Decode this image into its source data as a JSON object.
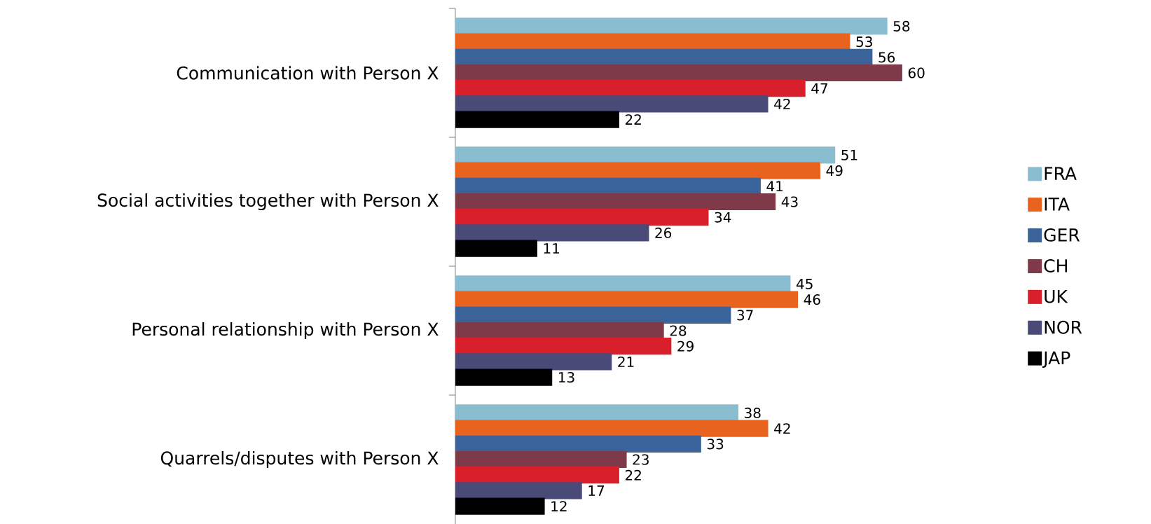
{
  "chart_data": {
    "type": "bar",
    "orientation": "horizontal",
    "data_labels": true,
    "legend": "right",
    "categories": [
      "Communication with Person X",
      "Social activities together with Person X",
      "Personal relationship with Person X",
      "Quarrels/disputes with Person X"
    ],
    "series": [
      {
        "name": "FRA",
        "color": "#8bbdd0",
        "values": [
          58,
          51,
          45,
          38
        ]
      },
      {
        "name": "ITA",
        "color": "#e8641e",
        "values": [
          53,
          49,
          46,
          42
        ]
      },
      {
        "name": "GER",
        "color": "#3a6499",
        "values": [
          56,
          41,
          37,
          33
        ]
      },
      {
        "name": "CH",
        "color": "#7f3a4a",
        "values": [
          60,
          43,
          28,
          23
        ]
      },
      {
        "name": "UK",
        "color": "#d9202a",
        "values": [
          47,
          34,
          29,
          22
        ]
      },
      {
        "name": "NOR",
        "color": "#4a4a78",
        "values": [
          42,
          26,
          21,
          17
        ]
      },
      {
        "name": "JAP",
        "color": "#000000",
        "values": [
          22,
          11,
          13,
          12
        ]
      }
    ]
  }
}
